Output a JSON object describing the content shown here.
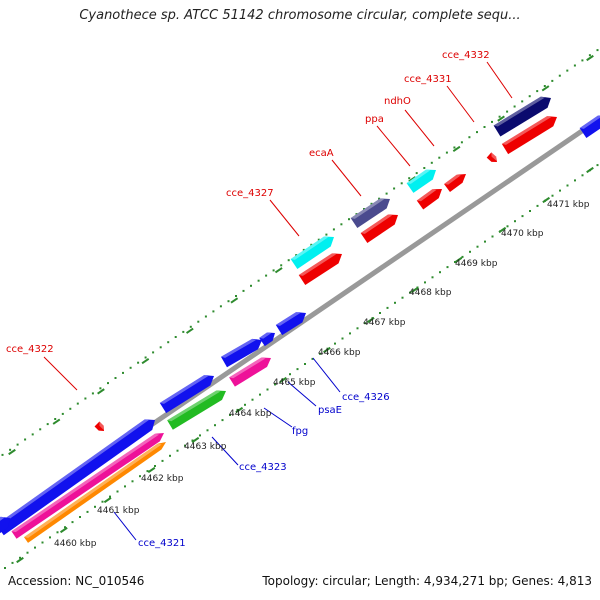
{
  "title": "Cyanothece sp. ATCC 51142 chromosome circular, complete sequ...",
  "footer": {
    "accession": "Accession: NC_010546",
    "summary": "Topology: circular; Length: 4,934,271 bp; Genes: 4,813"
  },
  "colors": {
    "backbone": "#999999",
    "tick": "#2e8b2e",
    "label_forward": "#dd0000",
    "label_reverse": "#0000cc",
    "blue": "#1111ee",
    "navy": "#0a0a6e",
    "slate": "#4a4a8e",
    "cyan": "#00f0f0",
    "red": "#ee0000",
    "pink": "#ee1199",
    "green": "#22bb22",
    "orange": "#ff8800"
  },
  "scale_labels": [
    "4460 kbp",
    "4461 kbp",
    "4462 kbp",
    "4463 kbp",
    "4464 kbp",
    "4465 kbp",
    "4466 kbp",
    "4467 kbp",
    "4468 kbp",
    "4469 kbp",
    "4470 kbp",
    "4471 kbp"
  ],
  "gene_labels_forward": [
    "cce_4322",
    "cce_4327",
    "ecaA",
    "ppa",
    "ndhO",
    "cce_4331",
    "cce_4332"
  ],
  "gene_labels_reverse": [
    "cce_4321",
    "cce_4323",
    "fpg",
    "psaE",
    "cce_4326"
  ]
}
